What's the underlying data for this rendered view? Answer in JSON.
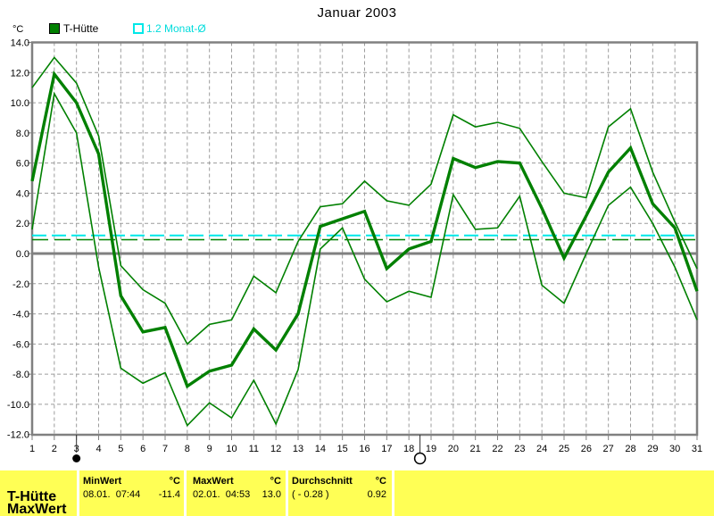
{
  "title": "Januar 2003",
  "legend": {
    "unit": "°C",
    "series": [
      {
        "label": "T-Hütte",
        "swatch": "filled",
        "color": "#008000"
      },
      {
        "label": "1.2 Monat-Ø",
        "swatch": "open",
        "color": "#00e8e8"
      }
    ]
  },
  "chart_data": {
    "type": "line",
    "title": "Januar 2003",
    "ylabel": "°C",
    "xlabel": "",
    "ylim": [
      -12,
      14
    ],
    "grid": true,
    "y_tick_labels": [
      "14.0",
      "12.0",
      "10.0",
      "8.0",
      "6.0",
      "4.0",
      "2.0",
      "0.0",
      "-2.0",
      "-4.0",
      "-6.0",
      "-8.0",
      "-10.0",
      "-12.0"
    ],
    "x": [
      1,
      2,
      3,
      4,
      5,
      6,
      7,
      8,
      9,
      10,
      11,
      12,
      13,
      14,
      15,
      16,
      17,
      18,
      19,
      20,
      21,
      22,
      23,
      24,
      25,
      26,
      27,
      28,
      29,
      30,
      31
    ],
    "x_tick_labels": [
      "1",
      "2",
      "3",
      "4",
      "5",
      "6",
      "7",
      "8",
      "9",
      "10",
      "11",
      "12",
      "13",
      "14",
      "15",
      "16",
      "17",
      "18",
      "19",
      "20",
      "21",
      "22",
      "23",
      "24",
      "25",
      "26",
      "27",
      "28",
      "29",
      "30",
      "31"
    ],
    "series": [
      {
        "name": "T-Hütte daily max",
        "color": "#008000",
        "width": 1.6,
        "values": [
          11.0,
          13.0,
          11.3,
          7.8,
          -0.8,
          -2.4,
          -3.3,
          -6.0,
          -4.7,
          -4.4,
          -1.5,
          -2.6,
          0.8,
          3.1,
          3.3,
          4.8,
          3.5,
          3.2,
          4.6,
          9.2,
          8.4,
          8.7,
          8.3,
          6.1,
          4.0,
          3.7,
          8.4,
          9.6,
          5.4,
          2.1,
          -1.0
        ]
      },
      {
        "name": "T-Hütte daily mean",
        "color": "#008000",
        "width": 3.4,
        "values": [
          4.8,
          11.9,
          10.0,
          6.6,
          -2.8,
          -5.2,
          -4.9,
          -8.8,
          -7.8,
          -7.4,
          -5.0,
          -6.4,
          -4.0,
          1.8,
          2.3,
          2.8,
          -1.0,
          0.3,
          0.8,
          6.3,
          5.7,
          6.1,
          6.0,
          3.0,
          -0.3,
          2.5,
          5.4,
          7.0,
          3.3,
          1.7,
          -2.5
        ]
      },
      {
        "name": "T-Hütte daily min",
        "color": "#008000",
        "width": 1.6,
        "values": [
          1.6,
          10.6,
          8.0,
          -0.9,
          -7.6,
          -8.6,
          -7.9,
          -11.4,
          -9.9,
          -10.9,
          -8.4,
          -11.3,
          -7.7,
          0.3,
          1.7,
          -1.7,
          -3.2,
          -2.5,
          -2.9,
          3.9,
          1.6,
          1.7,
          3.8,
          -2.1,
          -3.3,
          0.0,
          3.2,
          4.4,
          2.0,
          -0.9,
          -4.4
        ]
      }
    ],
    "reference_lines": [
      {
        "name": "long-term-month-average",
        "value": 1.2,
        "color": "#00e8e8",
        "dash": "16,6",
        "width": 2
      },
      {
        "name": "month-average",
        "value": 0.92,
        "color": "#008000",
        "dash": "18,7",
        "width": 1.5
      },
      {
        "name": "zero-line",
        "value": 0,
        "color": "#808080",
        "dash": "",
        "width": 3
      }
    ],
    "moon_markers": [
      {
        "day": 3,
        "phase": "new-moon"
      },
      {
        "day": 18.5,
        "phase": "full-moon"
      }
    ],
    "legend_position": "top-left"
  },
  "footer": {
    "row_labels": [
      "T-Hütte",
      "MaxWert"
    ],
    "cells": [
      {
        "header": "MinWert",
        "unit": "°C",
        "datetime": "08.01.  07:44",
        "value": "-11.4"
      },
      {
        "header": "MaxWert",
        "unit": "°C",
        "datetime": "02.01.  04:53",
        "value": "13.0"
      },
      {
        "header": "Durchschnitt",
        "unit": "°C",
        "datetime": "( - 0.28 )",
        "value": "0.92"
      }
    ],
    "colors": {
      "bg": "#ffff55",
      "grid": "#9c9c9c",
      "frame": "#808080",
      "line": "#008000"
    }
  }
}
